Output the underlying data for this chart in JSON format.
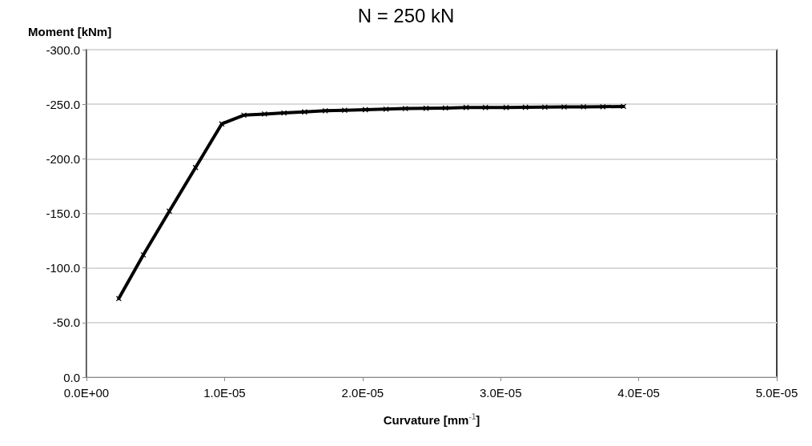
{
  "chart_data": {
    "type": "line",
    "title": "N = 250 kN",
    "xlabel": "Curvature [mm$^{-1}$]",
    "ylabel": "Moment [kNm]",
    "xlim": [
      0,
      5e-05
    ],
    "xticks": [
      {
        "value": 0,
        "label": "0.0E+00"
      },
      {
        "value": 1e-05,
        "label": "1.0E-05"
      },
      {
        "value": 2e-05,
        "label": "2.0E-05"
      },
      {
        "value": 3e-05,
        "label": "3.0E-05"
      },
      {
        "value": 4e-05,
        "label": "4.0E-05"
      },
      {
        "value": 5e-05,
        "label": "5.0E-05"
      }
    ],
    "ylim": [
      0,
      -300
    ],
    "yticks": [
      {
        "value": 0,
        "label": "0.0"
      },
      {
        "value": -50,
        "label": "-50.0"
      },
      {
        "value": -100,
        "label": "-100.0"
      },
      {
        "value": -150,
        "label": "-150.0"
      },
      {
        "value": -200,
        "label": "-200.0"
      },
      {
        "value": -250,
        "label": "-250.0"
      },
      {
        "value": -300,
        "label": "-300.0"
      }
    ],
    "grid": "y",
    "marker": "cross",
    "line_style": "solid",
    "series": [
      {
        "color": "#000000",
        "x": [
          2.34e-06,
          4.12e-06,
          6e-06,
          7.9e-06,
          9.8e-06,
          1.14e-05,
          1.29e-05,
          1.43e-05,
          1.58e-05,
          1.73e-05,
          1.87e-05,
          2.02e-05,
          2.17e-05,
          2.31e-05,
          2.46e-05,
          2.6e-05,
          2.75e-05,
          2.89e-05,
          3.04e-05,
          3.18e-05,
          3.32e-05,
          3.46e-05,
          3.6e-05,
          3.74e-05,
          3.89e-05
        ],
        "values": [
          -72,
          -112,
          -152,
          -192,
          -232,
          -240,
          -241,
          -242,
          -243,
          -244,
          -244.5,
          -245,
          -245.5,
          -246,
          -246.3,
          -246.5,
          -247,
          -247,
          -247,
          -247.2,
          -247.3,
          -247.5,
          -247.6,
          -247.7,
          -248
        ]
      }
    ]
  }
}
